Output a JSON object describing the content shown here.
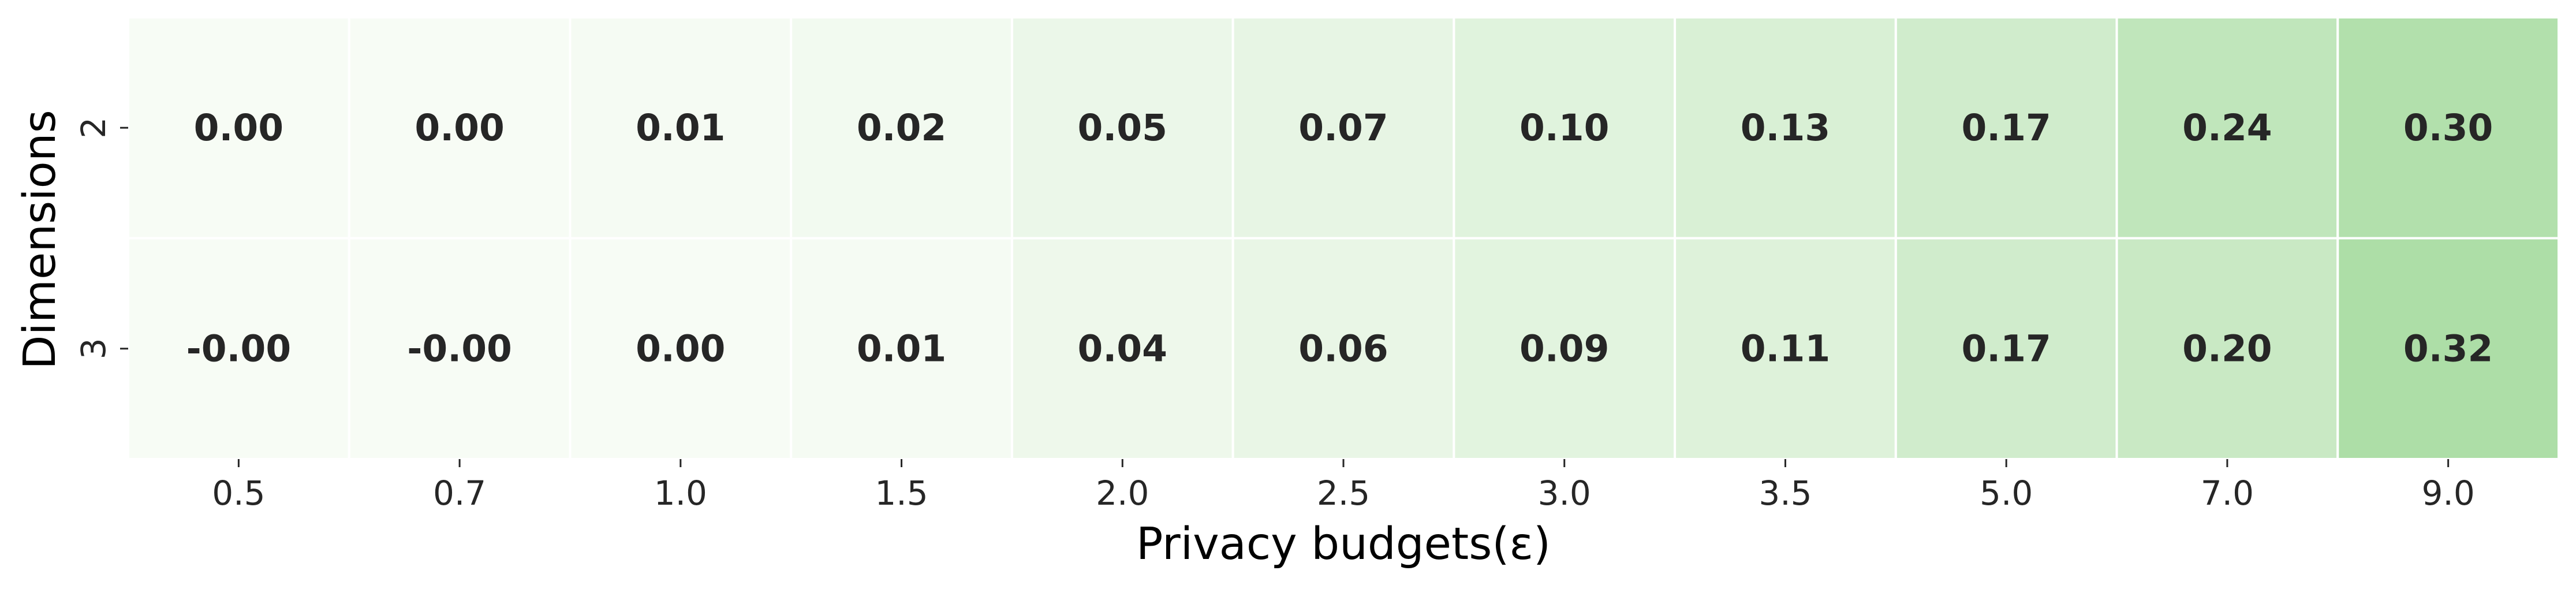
{
  "chart_data": {
    "type": "heatmap",
    "title": "",
    "xlabel": "Privacy budgets(ε)",
    "ylabel": "Dimensions",
    "x_categories": [
      "0.5",
      "0.7",
      "1.0",
      "1.5",
      "2.0",
      "2.5",
      "3.0",
      "3.5",
      "5.0",
      "7.0",
      "9.0"
    ],
    "y_categories": [
      "2",
      "3"
    ],
    "values": [
      [
        0.0,
        0.0,
        0.01,
        0.02,
        0.05,
        0.07,
        0.1,
        0.13,
        0.17,
        0.24,
        0.3
      ],
      [
        -0.0,
        -0.0,
        0.0,
        0.01,
        0.04,
        0.06,
        0.09,
        0.11,
        0.17,
        0.2,
        0.32
      ]
    ],
    "cell_labels": [
      [
        "0.00",
        "0.00",
        "0.01",
        "0.02",
        "0.05",
        "0.07",
        "0.10",
        "0.13",
        "0.17",
        "0.24",
        "0.30"
      ],
      [
        "-0.00",
        "-0.00",
        "0.00",
        "0.01",
        "0.04",
        "0.06",
        "0.09",
        "0.11",
        "0.17",
        "0.20",
        "0.32"
      ]
    ],
    "colormap": "Greens",
    "color_low": "#f7fcf5",
    "color_high": "#addea7",
    "value_range": [
      0,
      0.32
    ],
    "grid": true,
    "colorbar": false
  }
}
